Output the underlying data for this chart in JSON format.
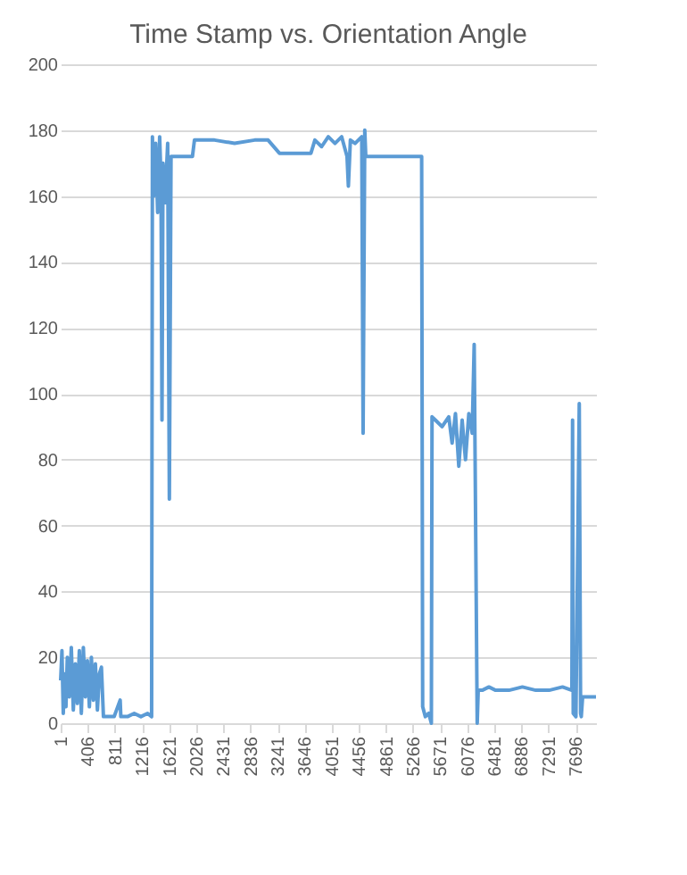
{
  "chart_data": {
    "type": "line",
    "title": "Time Stamp vs. Orientation Angle",
    "x": [
      1,
      20,
      40,
      60,
      80,
      100,
      130,
      160,
      190,
      220,
      250,
      280,
      310,
      340,
      370,
      400,
      430,
      460,
      490,
      520,
      550,
      580,
      610,
      640,
      700,
      800,
      890,
      900,
      1000,
      1100,
      1200,
      1300,
      1360,
      1372,
      1390,
      1420,
      1450,
      1480,
      1500,
      1515,
      1530,
      1560,
      1600,
      1625,
      1650,
      1690,
      1800,
      1970,
      2000,
      2300,
      2600,
      2900,
      3100,
      3270,
      3400,
      3740,
      3800,
      3900,
      4000,
      4100,
      4200,
      4280,
      4300,
      4330,
      4400,
      4500,
      4520,
      4545,
      4560,
      4600,
      4800,
      5000,
      5200,
      5395,
      5410,
      5450,
      5500,
      5540,
      5550,
      5600,
      5700,
      5800,
      5850,
      5900,
      5950,
      6000,
      6050,
      6100,
      6150,
      6180,
      6225,
      6240,
      6300,
      6400,
      6500,
      6700,
      6900,
      7100,
      7300,
      7500,
      7640,
      7650,
      7660,
      7700,
      7750,
      7770,
      7780,
      7800,
      7900,
      8000
    ],
    "series": [
      {
        "color": "#5b9bd5",
        "values": [
          13,
          22,
          3,
          15,
          5,
          20,
          8,
          23,
          4,
          18,
          6,
          22,
          3,
          23,
          8,
          19,
          5,
          20,
          7,
          18,
          4,
          15,
          17,
          2,
          2,
          2,
          7,
          2,
          2,
          3,
          2,
          3,
          2,
          178,
          160,
          176,
          155,
          178,
          165,
          92,
          170,
          158,
          176,
          68,
          172,
          172,
          172,
          172,
          177,
          177,
          176,
          177,
          177,
          173,
          173,
          173,
          177,
          175,
          178,
          176,
          178,
          172,
          163,
          177,
          176,
          178,
          88,
          180,
          172,
          172,
          172,
          172,
          172,
          172,
          5,
          2,
          3,
          0,
          93,
          92,
          90,
          93,
          85,
          94,
          78,
          92,
          80,
          94,
          88,
          115,
          0,
          10,
          10,
          11,
          10,
          10,
          11,
          10,
          10,
          11,
          10,
          92,
          3,
          2,
          97,
          3,
          2,
          8,
          8,
          8
        ]
      }
    ],
    "xlim": [
      1,
      8000
    ],
    "ylim": [
      0,
      200
    ],
    "yticks": [
      0,
      20,
      40,
      60,
      80,
      100,
      120,
      140,
      160,
      180,
      200
    ],
    "xticks": [
      1,
      406,
      811,
      1216,
      1621,
      2026,
      2431,
      2836,
      3241,
      3646,
      4051,
      4456,
      4861,
      5266,
      5671,
      6076,
      6481,
      6886,
      7291,
      7696
    ],
    "grid": "y",
    "legend": false,
    "marker": "none",
    "line_style": "solid"
  }
}
